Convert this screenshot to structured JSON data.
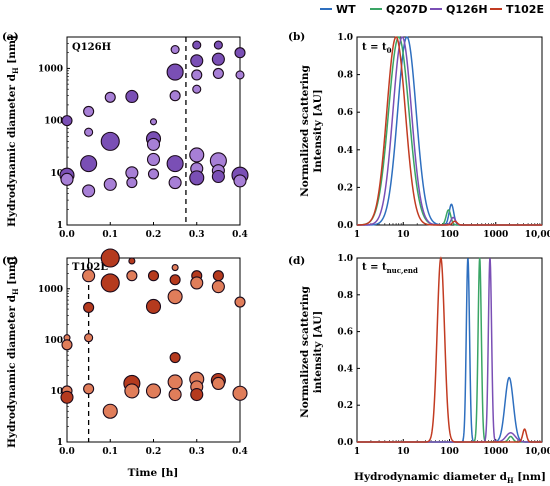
{
  "panels": {
    "a": {
      "letter": "(a)",
      "tag": "Q126H"
    },
    "b": {
      "letter": "(b)",
      "tag": "t = t",
      "tag_sub": "0"
    },
    "c": {
      "letter": "(c)",
      "tag": "T102E"
    },
    "d": {
      "letter": "(d)",
      "tag": "t = t",
      "tag_sub": "nuc,end"
    }
  },
  "axes": {
    "left_ylabel": "Hydrodynamic diameter d",
    "left_ylabel_sub": "H",
    "left_ylabel_unit": " [nm]",
    "right_ylabel_b_line1": "Normalized scattering",
    "right_ylabel_b_line2": "Intensity [AU]",
    "right_ylabel_d_line1": "Normalized scattering",
    "right_ylabel_d_line2": "intensity [AU]",
    "time_xlabel": "Time [h]",
    "dh_xlabel": "Hydrodynamic diameter d",
    "dh_xlabel_sub": "H",
    "dh_xlabel_unit": " [nm]"
  },
  "colors": {
    "WT": "#2e6fbf",
    "Q207D": "#3aa565",
    "Q126H": "#7a4fb5",
    "T102E": "#c23b22"
  },
  "chart_data": [
    {
      "panel": "a",
      "type": "scatter",
      "xlabel": "Time [h]",
      "ylabel": "Hydrodynamic diameter dH [nm]",
      "xlim": [
        0,
        0.4
      ],
      "ylim": [
        1,
        4000
      ],
      "ylog": true,
      "xticks": [
        "0.0",
        "0.1",
        "0.2",
        "0.3",
        "0.4"
      ],
      "yticks": [
        "1",
        "10",
        "100",
        "1000"
      ],
      "vline_x": 0.275,
      "points": [
        {
          "x": 0.0,
          "y": 100,
          "s": 5,
          "c": "#7a4fb5"
        },
        {
          "x": 0.0,
          "y": 9,
          "s": 7,
          "c": "#7a4fb5"
        },
        {
          "x": 0.0,
          "y": 7.5,
          "s": 6,
          "c": "#a77fd6"
        },
        {
          "x": 0.05,
          "y": 150,
          "s": 5,
          "c": "#a77fd6"
        },
        {
          "x": 0.05,
          "y": 60,
          "s": 4,
          "c": "#a77fd6"
        },
        {
          "x": 0.05,
          "y": 15,
          "s": 8,
          "c": "#7a4fb5"
        },
        {
          "x": 0.05,
          "y": 4.5,
          "s": 6,
          "c": "#a77fd6"
        },
        {
          "x": 0.1,
          "y": 280,
          "s": 5,
          "c": "#a77fd6"
        },
        {
          "x": 0.1,
          "y": 40,
          "s": 9,
          "c": "#7a4fb5"
        },
        {
          "x": 0.1,
          "y": 6,
          "s": 6,
          "c": "#a77fd6"
        },
        {
          "x": 0.15,
          "y": 290,
          "s": 6,
          "c": "#7a4fb5"
        },
        {
          "x": 0.15,
          "y": 10,
          "s": 6,
          "c": "#a77fd6"
        },
        {
          "x": 0.15,
          "y": 6.5,
          "s": 5,
          "c": "#a77fd6"
        },
        {
          "x": 0.2,
          "y": 95,
          "s": 3,
          "c": "#a77fd6"
        },
        {
          "x": 0.2,
          "y": 45,
          "s": 7,
          "c": "#7a4fb5"
        },
        {
          "x": 0.2,
          "y": 35,
          "s": 6,
          "c": "#a77fd6"
        },
        {
          "x": 0.2,
          "y": 18,
          "s": 6,
          "c": "#a77fd6"
        },
        {
          "x": 0.2,
          "y": 9.5,
          "s": 5,
          "c": "#a77fd6"
        },
        {
          "x": 0.25,
          "y": 2300,
          "s": 4,
          "c": "#a77fd6"
        },
        {
          "x": 0.25,
          "y": 850,
          "s": 8,
          "c": "#7a4fb5"
        },
        {
          "x": 0.25,
          "y": 300,
          "s": 5,
          "c": "#a77fd6"
        },
        {
          "x": 0.25,
          "y": 15,
          "s": 8,
          "c": "#7a4fb5"
        },
        {
          "x": 0.25,
          "y": 6.5,
          "s": 6,
          "c": "#a77fd6"
        },
        {
          "x": 0.3,
          "y": 2800,
          "s": 4,
          "c": "#7a4fb5"
        },
        {
          "x": 0.3,
          "y": 1400,
          "s": 6,
          "c": "#7a4fb5"
        },
        {
          "x": 0.3,
          "y": 750,
          "s": 5,
          "c": "#a77fd6"
        },
        {
          "x": 0.3,
          "y": 400,
          "s": 4,
          "c": "#a77fd6"
        },
        {
          "x": 0.3,
          "y": 22,
          "s": 7,
          "c": "#a77fd6"
        },
        {
          "x": 0.3,
          "y": 12,
          "s": 6,
          "c": "#a77fd6"
        },
        {
          "x": 0.3,
          "y": 8,
          "s": 7,
          "c": "#7a4fb5"
        },
        {
          "x": 0.35,
          "y": 2800,
          "s": 4,
          "c": "#7a4fb5"
        },
        {
          "x": 0.35,
          "y": 1500,
          "s": 6,
          "c": "#7a4fb5"
        },
        {
          "x": 0.35,
          "y": 800,
          "s": 5,
          "c": "#a77fd6"
        },
        {
          "x": 0.35,
          "y": 17,
          "s": 8,
          "c": "#a77fd6"
        },
        {
          "x": 0.35,
          "y": 11,
          "s": 6,
          "c": "#a77fd6"
        },
        {
          "x": 0.35,
          "y": 8.5,
          "s": 6,
          "c": "#7a4fb5"
        },
        {
          "x": 0.4,
          "y": 2000,
          "s": 5,
          "c": "#7a4fb5"
        },
        {
          "x": 0.4,
          "y": 750,
          "s": 4,
          "c": "#a77fd6"
        },
        {
          "x": 0.4,
          "y": 9,
          "s": 8,
          "c": "#7a4fb5"
        },
        {
          "x": 0.4,
          "y": 7,
          "s": 6,
          "c": "#a77fd6"
        }
      ]
    },
    {
      "panel": "b",
      "type": "line",
      "xlabel": "",
      "ylabel": "Normalized scattering Intensity [AU]",
      "xlim": [
        1,
        10000
      ],
      "xlog": true,
      "ylim": [
        0,
        1.0
      ],
      "xticks": [
        "1",
        "10",
        "100",
        "1000",
        "10,000"
      ],
      "yticks": [
        "0.0",
        "0.2",
        "0.4",
        "0.6",
        "0.8",
        "1.0"
      ],
      "series": [
        {
          "name": "WT",
          "peaks": [
            {
              "mu": 12,
              "w": 0.2,
              "h": 1.0
            },
            {
              "mu": 110,
              "w": 0.05,
              "h": 0.11
            }
          ]
        },
        {
          "name": "Q207D",
          "peaks": [
            {
              "mu": 8,
              "w": 0.22,
              "h": 1.0
            },
            {
              "mu": 95,
              "w": 0.05,
              "h": 0.08
            }
          ]
        },
        {
          "name": "Q126H",
          "peaks": [
            {
              "mu": 9.5,
              "w": 0.2,
              "h": 1.0
            },
            {
              "mu": 120,
              "w": 0.05,
              "h": 0.04
            }
          ]
        },
        {
          "name": "T102E",
          "peaks": [
            {
              "mu": 7,
              "w": 0.2,
              "h": 1.0
            },
            {
              "mu": 130,
              "w": 0.05,
              "h": 0.02
            }
          ]
        }
      ]
    },
    {
      "panel": "c",
      "type": "scatter",
      "xlabel": "Time [h]",
      "ylabel": "Hydrodynamic diameter dH [nm]",
      "xlim": [
        0,
        0.4
      ],
      "ylim": [
        1,
        4000
      ],
      "ylog": true,
      "xticks": [
        "0.0",
        "0.1",
        "0.2",
        "0.3",
        "0.4"
      ],
      "yticks": [
        "1",
        "10",
        "100",
        "1000"
      ],
      "vline_x": 0.05,
      "points": [
        {
          "x": 0.0,
          "y": 110,
          "s": 3,
          "c": "#e07d5a"
        },
        {
          "x": 0.0,
          "y": 80,
          "s": 5,
          "c": "#e07d5a"
        },
        {
          "x": 0.0,
          "y": 10,
          "s": 5,
          "c": "#e07d5a"
        },
        {
          "x": 0.0,
          "y": 7.5,
          "s": 6,
          "c": "#b53a1e"
        },
        {
          "x": 0.05,
          "y": 1800,
          "s": 6,
          "c": "#e07d5a"
        },
        {
          "x": 0.05,
          "y": 430,
          "s": 5,
          "c": "#b53a1e"
        },
        {
          "x": 0.05,
          "y": 110,
          "s": 4,
          "c": "#e07d5a"
        },
        {
          "x": 0.05,
          "y": 11,
          "s": 5,
          "c": "#e07d5a"
        },
        {
          "x": 0.1,
          "y": 4000,
          "s": 9,
          "c": "#b53a1e"
        },
        {
          "x": 0.1,
          "y": 1300,
          "s": 9,
          "c": "#b53a1e"
        },
        {
          "x": 0.1,
          "y": 4,
          "s": 7,
          "c": "#e07d5a"
        },
        {
          "x": 0.15,
          "y": 3500,
          "s": 3,
          "c": "#b53a1e"
        },
        {
          "x": 0.15,
          "y": 1800,
          "s": 5,
          "c": "#e07d5a"
        },
        {
          "x": 0.15,
          "y": 14,
          "s": 8,
          "c": "#b53a1e"
        },
        {
          "x": 0.15,
          "y": 10,
          "s": 7,
          "c": "#e07d5a"
        },
        {
          "x": 0.2,
          "y": 1800,
          "s": 5,
          "c": "#b53a1e"
        },
        {
          "x": 0.2,
          "y": 450,
          "s": 7,
          "c": "#b53a1e"
        },
        {
          "x": 0.2,
          "y": 10,
          "s": 7,
          "c": "#e07d5a"
        },
        {
          "x": 0.25,
          "y": 2600,
          "s": 3,
          "c": "#e07d5a"
        },
        {
          "x": 0.25,
          "y": 1500,
          "s": 5,
          "c": "#b53a1e"
        },
        {
          "x": 0.25,
          "y": 700,
          "s": 7,
          "c": "#e07d5a"
        },
        {
          "x": 0.25,
          "y": 45,
          "s": 5,
          "c": "#b53a1e"
        },
        {
          "x": 0.25,
          "y": 15,
          "s": 7,
          "c": "#e07d5a"
        },
        {
          "x": 0.25,
          "y": 8.5,
          "s": 6,
          "c": "#e07d5a"
        },
        {
          "x": 0.3,
          "y": 1800,
          "s": 5,
          "c": "#b53a1e"
        },
        {
          "x": 0.3,
          "y": 1300,
          "s": 6,
          "c": "#e07d5a"
        },
        {
          "x": 0.3,
          "y": 17,
          "s": 7,
          "c": "#e07d5a"
        },
        {
          "x": 0.3,
          "y": 12,
          "s": 6,
          "c": "#e07d5a"
        },
        {
          "x": 0.3,
          "y": 8.5,
          "s": 6,
          "c": "#b53a1e"
        },
        {
          "x": 0.35,
          "y": 1800,
          "s": 5,
          "c": "#b53a1e"
        },
        {
          "x": 0.35,
          "y": 1100,
          "s": 6,
          "c": "#e07d5a"
        },
        {
          "x": 0.35,
          "y": 16,
          "s": 7,
          "c": "#b53a1e"
        },
        {
          "x": 0.35,
          "y": 14,
          "s": 6,
          "c": "#e07d5a"
        },
        {
          "x": 0.4,
          "y": 550,
          "s": 5,
          "c": "#e07d5a"
        },
        {
          "x": 0.4,
          "y": 9,
          "s": 7,
          "c": "#e07d5a"
        }
      ]
    },
    {
      "panel": "d",
      "type": "line",
      "xlabel": "Hydrodynamic diameter dH [nm]",
      "ylabel": "Normalized scattering intensity [AU]",
      "xlim": [
        1,
        10000
      ],
      "xlog": true,
      "ylim": [
        0,
        1.0
      ],
      "xticks": [
        "1",
        "10",
        "100",
        "1000",
        "10,000"
      ],
      "yticks": [
        "0.0",
        "0.2",
        "0.4",
        "0.6",
        "0.8",
        "1.0"
      ],
      "series": [
        {
          "name": "WT",
          "peaks": [
            {
              "mu": 250,
              "w": 0.035,
              "h": 1.0
            },
            {
              "mu": 1950,
              "w": 0.09,
              "h": 0.35
            }
          ]
        },
        {
          "name": "Q207D",
          "peaks": [
            {
              "mu": 450,
              "w": 0.035,
              "h": 1.0
            },
            {
              "mu": 2100,
              "w": 0.05,
              "h": 0.03
            }
          ]
        },
        {
          "name": "Q126H",
          "peaks": [
            {
              "mu": 750,
              "w": 0.035,
              "h": 1.0
            },
            {
              "mu": 2100,
              "w": 0.1,
              "h": 0.05
            }
          ]
        },
        {
          "name": "T102E",
          "peaks": [
            {
              "mu": 65,
              "w": 0.08,
              "h": 1.0
            },
            {
              "mu": 4200,
              "w": 0.04,
              "h": 0.07
            }
          ]
        }
      ]
    }
  ]
}
